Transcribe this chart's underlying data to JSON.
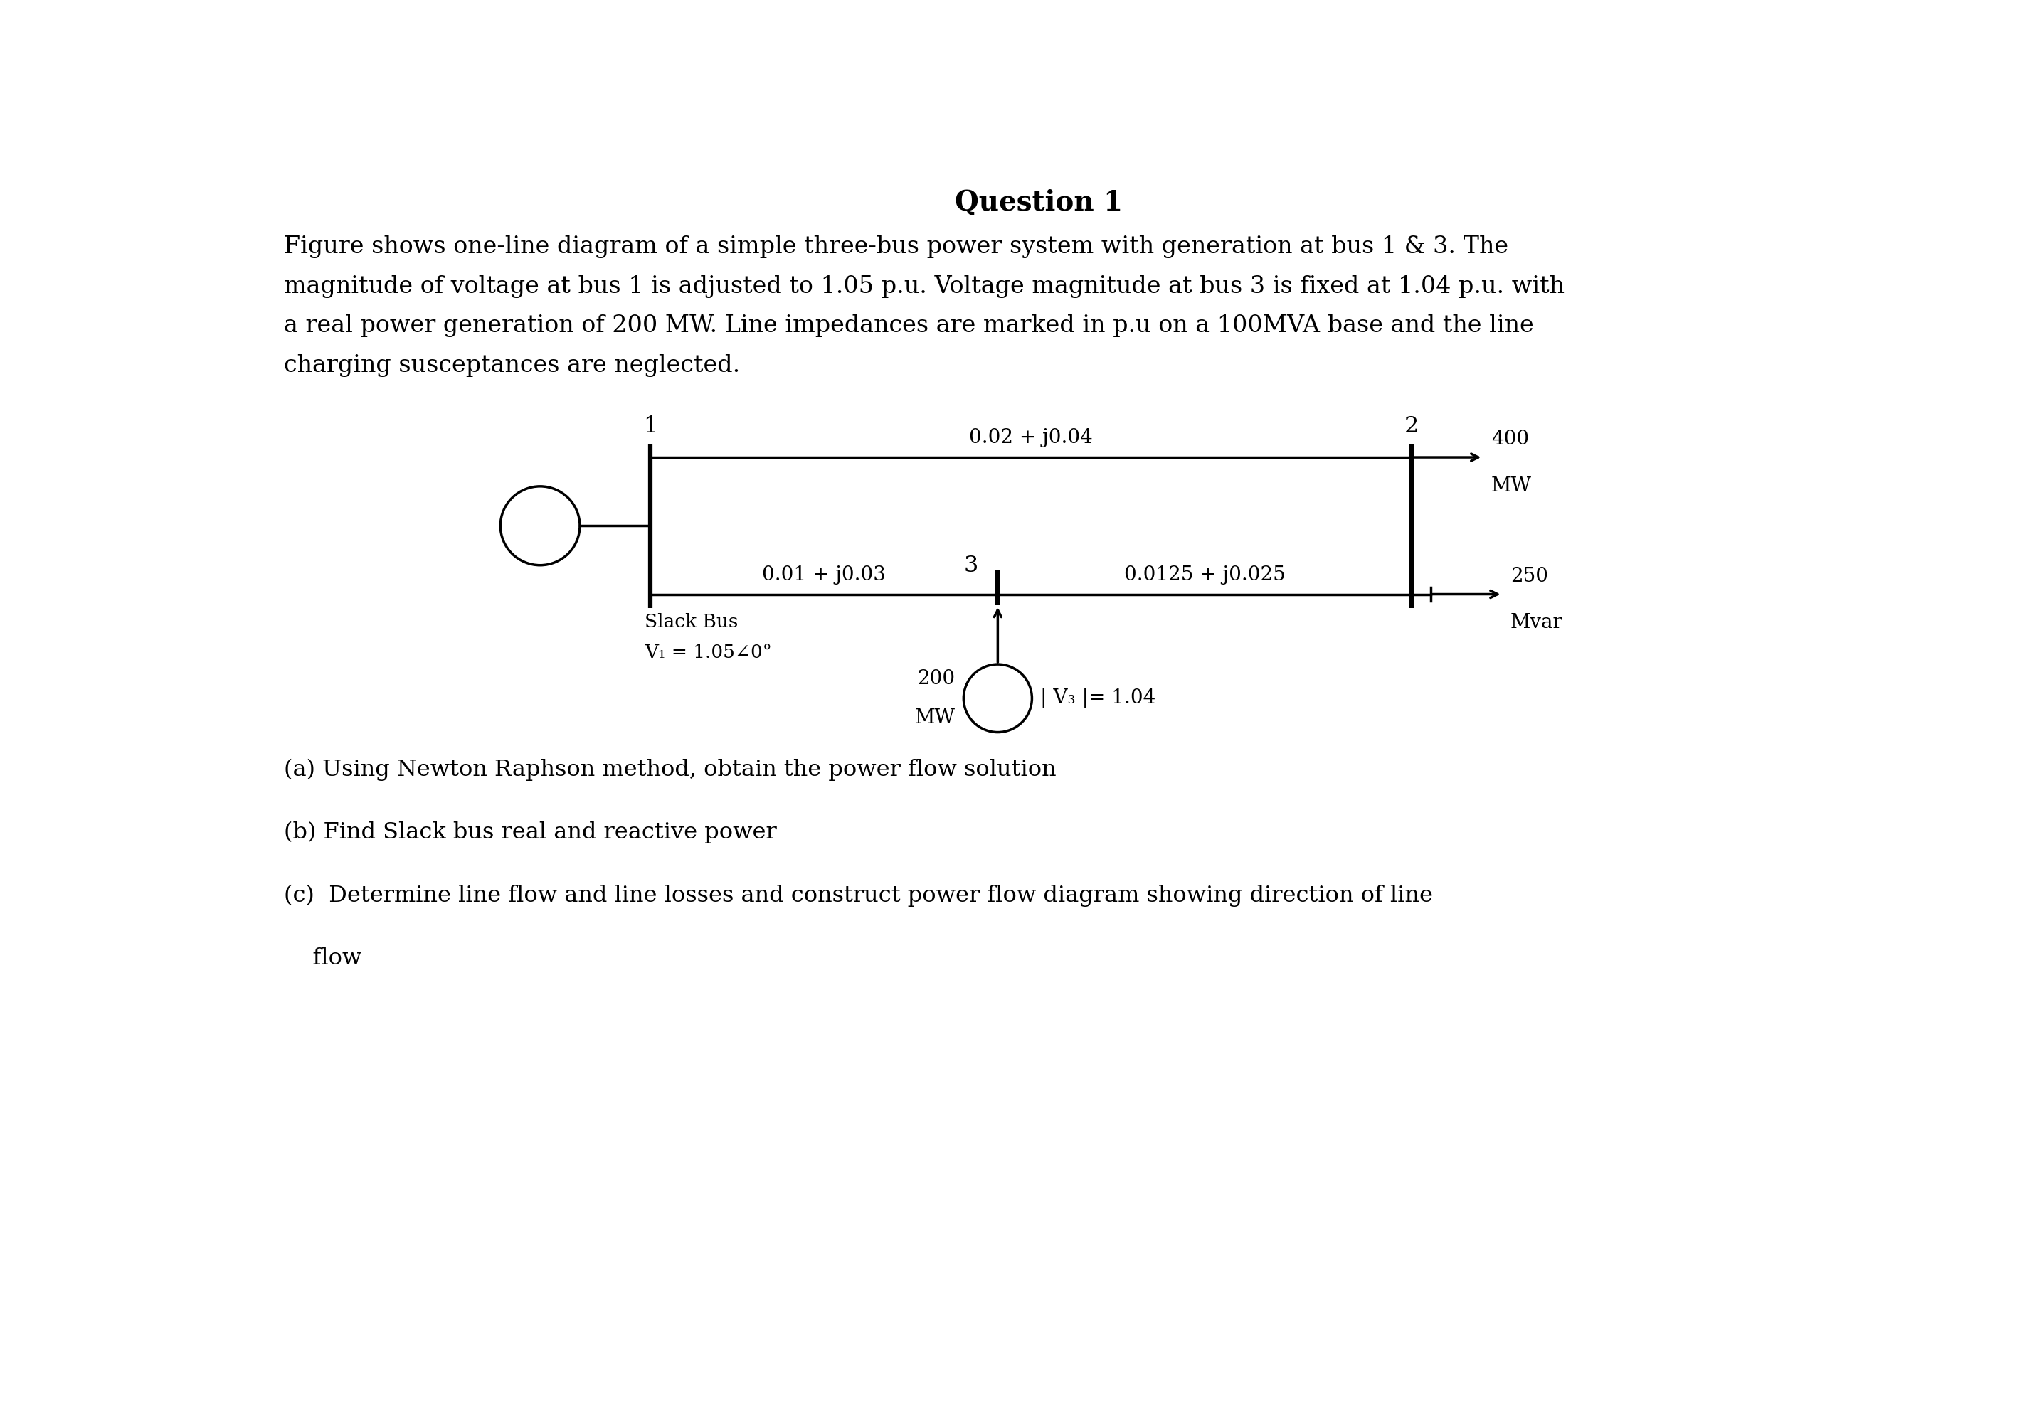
{
  "title": "Question 1",
  "paragraph_lines": [
    "Figure shows one-line diagram of a simple three-bus power system with generation at bus 1 & 3. The",
    "magnitude of voltage at bus 1 is adjusted to 1.05 p.u. Voltage magnitude at bus 3 is fixed at 1.04 p.u. with",
    "a real power generation of 200 MW. Line impedances are marked in p.u on a 100MVA base and the line",
    "charging susceptances are neglected."
  ],
  "diagram": {
    "bus1_label": "1",
    "bus2_label": "2",
    "bus3_label": "3",
    "line12_label": "0.02 + j0.04",
    "line13_label": "0.01 + j0.03",
    "line23_label": "0.0125 + j0.025",
    "slack_label1": "Slack Bus",
    "slack_label2": "V₁ = 1.05∠0°",
    "load2_mw_line1": "400",
    "load2_mw_line2": "MW",
    "load2_mvar_line1": "250",
    "load2_mvar_line2": "Mvar",
    "gen3_mw_line1": "200",
    "gen3_mw_line2": "MW",
    "gen3_v": "| V₃ |= 1.04"
  },
  "questions": [
    "(a) Using Newton Raphson method, obtain the power flow solution",
    "(b) Find Slack bus real and reactive power",
    "(c)  Determine line flow and line losses and construct power flow diagram showing direction of line",
    "    flow"
  ],
  "bg_color": "#ffffff",
  "text_color": "#000000",
  "line_color": "#000000",
  "title_fontsize": 28,
  "body_fontsize": 24,
  "diagram_fontsize": 20,
  "question_fontsize": 23
}
